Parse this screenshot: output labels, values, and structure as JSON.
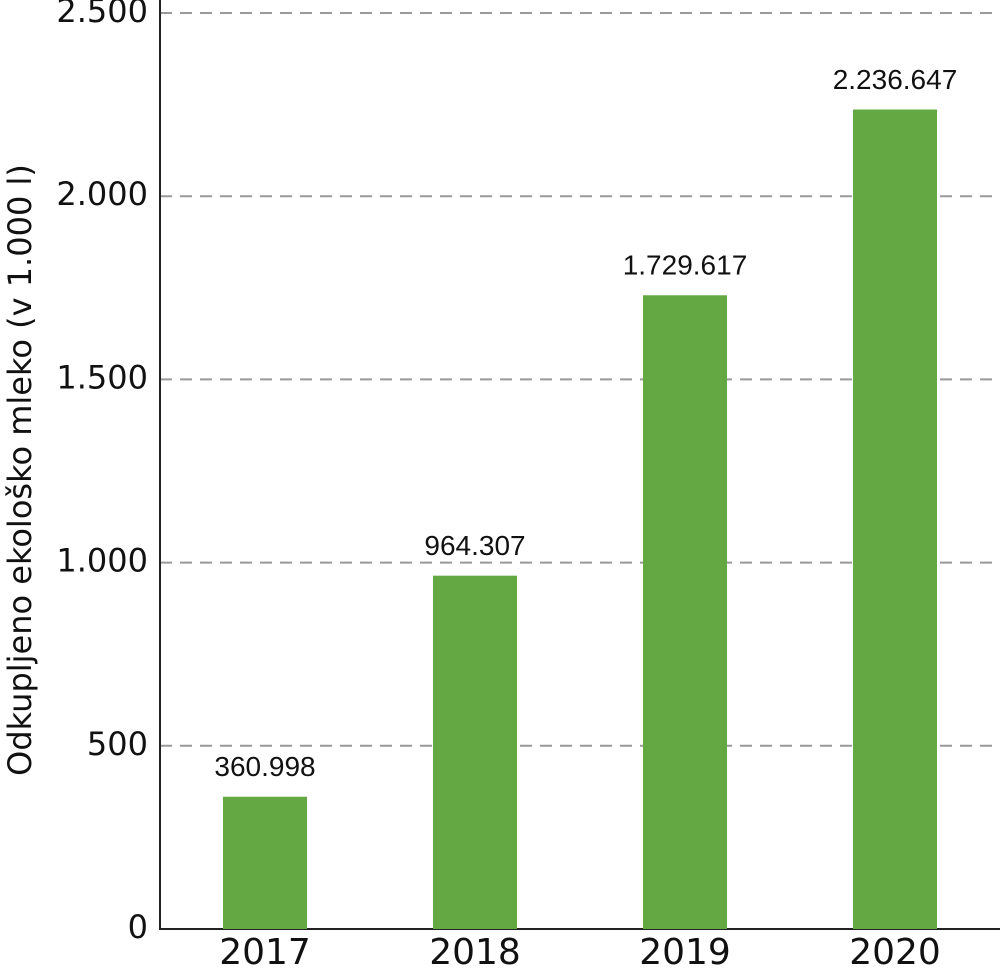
{
  "chart_data": {
    "type": "bar",
    "y_label": "Odkupljeno ekološko mleko (v 1.000 l)",
    "categories": [
      "2017",
      "2018",
      "2019",
      "2020"
    ],
    "values": [
      360.998,
      964.307,
      1729.617,
      2236.647
    ],
    "value_labels": [
      "360.998",
      "964.307",
      "1.729.617",
      "2.236.647"
    ],
    "color": "#64a843",
    "ylim": [
      0,
      2500
    ],
    "yticks": [
      0,
      500,
      {
        "value": 1000,
        "label": "1.000"
      },
      {
        "value": 1500,
        "label": "1.500"
      },
      {
        "value": 2000,
        "label": "2.000"
      },
      {
        "value": 2500,
        "label": "2.500"
      }
    ],
    "grid": true
  }
}
